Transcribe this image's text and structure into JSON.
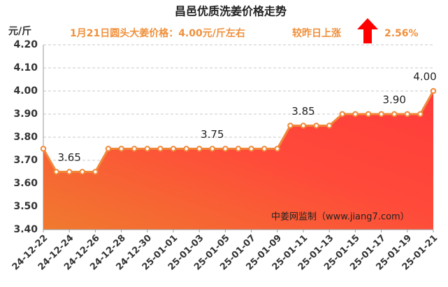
{
  "chart_data": {
    "type": "area-line",
    "title": "昌邑优质洗姜价格走势",
    "y_label": "元/斤",
    "annotations": [
      "1月21日圆头大姜价格：4.00元/斤左右",
      "较昨日上涨",
      "2.56%"
    ],
    "source": "中姜网监制（www.jiang7.com）",
    "categories": [
      "24-12-22",
      null,
      "24-12-24",
      null,
      "24-12-26",
      null,
      "24-12-28",
      null,
      "24-12-30",
      null,
      "25-01-01",
      null,
      "25-01-03",
      null,
      "25-01-05",
      null,
      "25-01-07",
      null,
      "25-01-09",
      null,
      "25-01-11",
      null,
      "25-01-13",
      null,
      "25-01-15",
      null,
      "25-01-17",
      null,
      "25-01-19",
      null,
      "25-01-21"
    ],
    "values": [
      3.75,
      3.65,
      3.65,
      3.65,
      3.65,
      3.75,
      3.75,
      3.75,
      3.75,
      3.75,
      3.75,
      3.75,
      3.75,
      3.75,
      3.75,
      3.75,
      3.75,
      3.75,
      3.75,
      3.85,
      3.85,
      3.85,
      3.85,
      3.9,
      3.9,
      3.9,
      3.9,
      3.9,
      3.9,
      3.9,
      4.0
    ],
    "value_labels": [
      null,
      null,
      "3.65",
      null,
      null,
      null,
      null,
      null,
      null,
      null,
      null,
      null,
      null,
      "3.75",
      null,
      null,
      null,
      null,
      null,
      null,
      "3.85",
      null,
      null,
      null,
      null,
      null,
      null,
      "3.90",
      null,
      null,
      "4.00"
    ],
    "color": "#f0883a",
    "ylim": [
      3.4,
      4.2
    ],
    "yticks": [
      {
        "value": 3.4,
        "label": "3.40"
      },
      {
        "value": 3.5,
        "label": "3.50"
      },
      {
        "value": 3.6,
        "label": "3.60"
      },
      {
        "value": 3.7,
        "label": "3.70"
      },
      {
        "value": 3.8,
        "label": "3.80"
      },
      {
        "value": 3.9,
        "label": "3.90"
      },
      {
        "value": 4.0,
        "label": "4.00"
      },
      {
        "value": 4.1,
        "label": "4.10"
      },
      {
        "value": 4.2,
        "label": "4.20"
      }
    ],
    "grid": true
  }
}
